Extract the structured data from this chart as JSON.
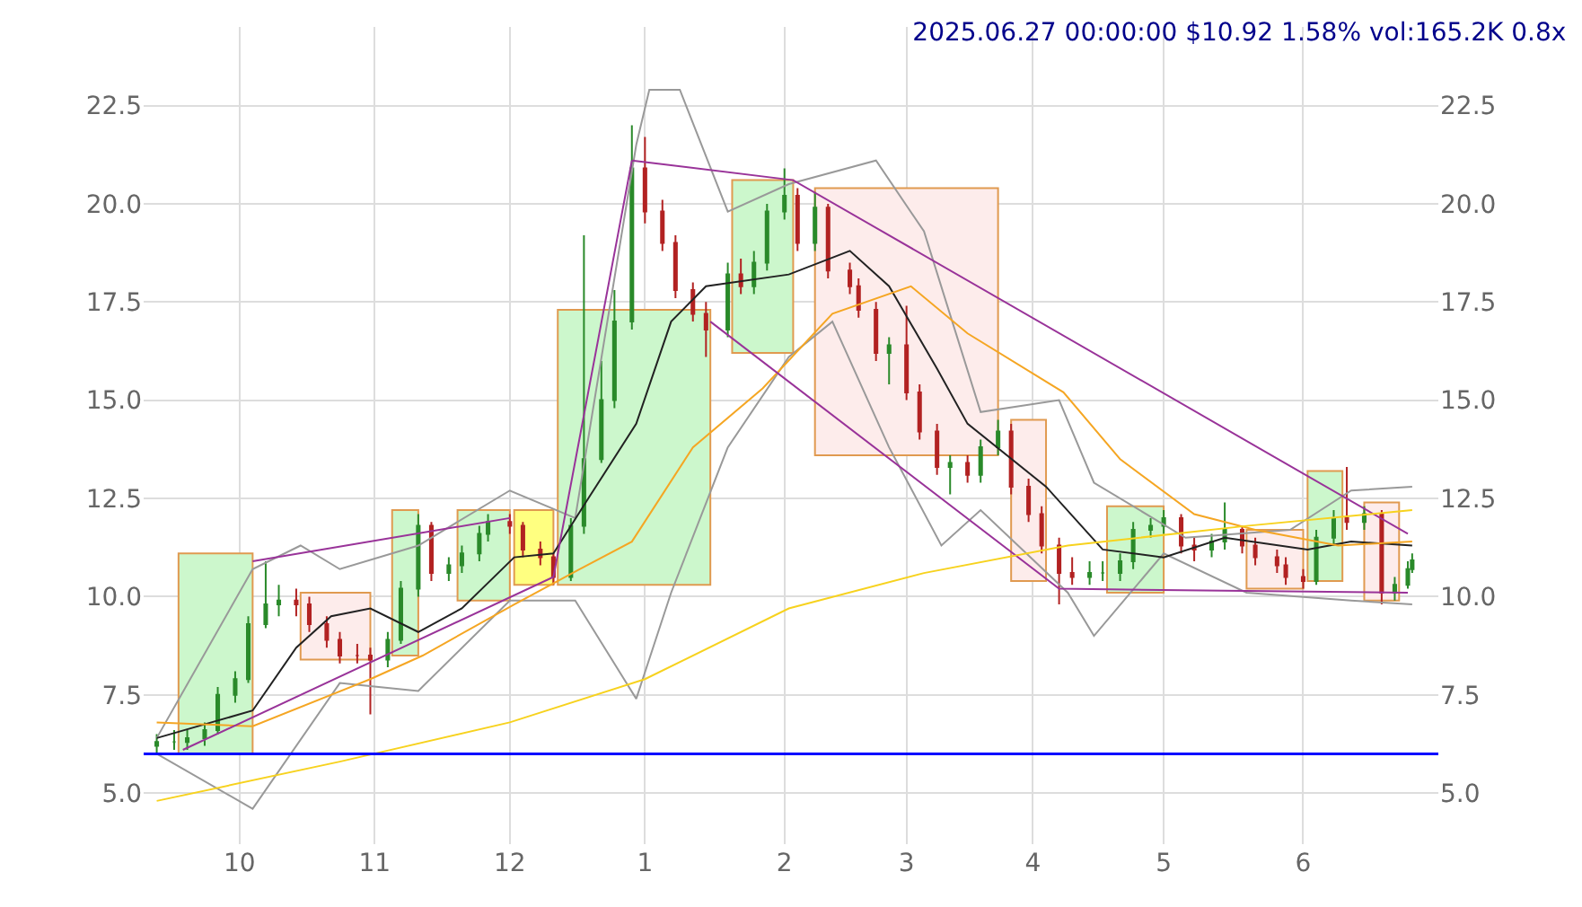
{
  "chart_data": {
    "type": "candlestick",
    "title": "2025.06.27 00:00:00 $10.92 1.58% vol:165.2K 0.8x",
    "x": [
      "2024-09-12",
      "2024-09-16",
      "2024-09-19",
      "2024-09-23",
      "2024-09-26",
      "2024-09-30",
      "2024-10-03",
      "2024-10-07",
      "2024-10-10",
      "2024-10-14",
      "2024-10-17",
      "2024-10-21",
      "2024-10-24",
      "2024-10-28",
      "2024-10-31",
      "2024-11-04",
      "2024-11-07",
      "2024-11-11",
      "2024-11-14",
      "2024-11-18",
      "2024-11-21",
      "2024-11-25",
      "2024-11-27",
      "2024-12-02",
      "2024-12-05",
      "2024-12-09",
      "2024-12-12",
      "2024-12-16",
      "2024-12-19",
      "2024-12-23",
      "2024-12-26",
      "2024-12-30",
      "2025-01-02",
      "2025-01-06",
      "2025-01-09",
      "2025-01-13",
      "2025-01-16",
      "2025-01-21",
      "2025-01-24",
      "2025-01-27",
      "2025-01-30",
      "2025-02-03",
      "2025-02-06",
      "2025-02-10",
      "2025-02-13",
      "2025-02-18",
      "2025-02-20",
      "2025-02-24",
      "2025-02-27",
      "2025-03-03",
      "2025-03-06",
      "2025-03-10",
      "2025-03-13",
      "2025-03-17",
      "2025-03-20",
      "2025-03-24",
      "2025-03-27",
      "2025-03-31",
      "2025-04-03",
      "2025-04-07",
      "2025-04-10",
      "2025-04-14",
      "2025-04-17",
      "2025-04-21",
      "2025-04-24",
      "2025-04-28",
      "2025-05-01",
      "2025-05-05",
      "2025-05-08",
      "2025-05-12",
      "2025-05-15",
      "2025-05-19",
      "2025-05-22",
      "2025-05-27",
      "2025-05-29",
      "2025-06-02",
      "2025-06-05",
      "2025-06-09",
      "2025-06-12",
      "2025-06-16",
      "2025-06-20",
      "2025-06-23",
      "2025-06-26",
      "2025-06-27"
    ],
    "ohlc": [
      [
        6.2,
        6.5,
        6.0,
        6.3
      ],
      [
        6.3,
        6.6,
        6.1,
        6.3
      ],
      [
        6.3,
        6.6,
        6.1,
        6.4
      ],
      [
        6.4,
        6.8,
        6.2,
        6.6
      ],
      [
        6.6,
        7.7,
        6.5,
        7.5
      ],
      [
        7.5,
        8.1,
        7.3,
        7.9
      ],
      [
        7.9,
        9.5,
        7.8,
        9.3
      ],
      [
        9.3,
        10.9,
        9.2,
        9.8
      ],
      [
        9.8,
        10.3,
        9.5,
        9.9
      ],
      [
        9.9,
        10.2,
        9.5,
        9.8
      ],
      [
        9.8,
        10.0,
        9.1,
        9.3
      ],
      [
        9.3,
        9.5,
        8.7,
        8.9
      ],
      [
        8.9,
        9.1,
        8.3,
        8.5
      ],
      [
        8.5,
        8.8,
        8.3,
        8.5
      ],
      [
        8.5,
        8.7,
        7.0,
        8.4
      ],
      [
        8.4,
        9.1,
        8.2,
        8.9
      ],
      [
        8.9,
        10.4,
        8.8,
        10.2
      ],
      [
        10.2,
        12.1,
        10.0,
        11.8
      ],
      [
        11.8,
        11.9,
        10.4,
        10.6
      ],
      [
        10.6,
        11.0,
        10.4,
        10.8
      ],
      [
        10.8,
        11.3,
        10.6,
        11.1
      ],
      [
        11.1,
        11.8,
        10.9,
        11.6
      ],
      [
        11.6,
        12.1,
        11.4,
        11.9
      ],
      [
        11.9,
        12.1,
        11.6,
        11.8
      ],
      [
        11.8,
        11.9,
        11.0,
        11.2
      ],
      [
        11.2,
        11.4,
        10.8,
        11.0
      ],
      [
        11.0,
        11.1,
        10.3,
        10.5
      ],
      [
        10.5,
        12.0,
        10.4,
        11.8
      ],
      [
        11.8,
        19.2,
        11.6,
        13.5
      ],
      [
        13.5,
        16.0,
        13.4,
        15.0
      ],
      [
        15.0,
        17.8,
        14.8,
        17.0
      ],
      [
        17.0,
        22.0,
        16.8,
        20.9
      ],
      [
        20.9,
        21.7,
        19.5,
        19.8
      ],
      [
        19.8,
        20.1,
        18.8,
        19.0
      ],
      [
        19.0,
        19.2,
        17.6,
        17.8
      ],
      [
        17.8,
        18.0,
        17.0,
        17.2
      ],
      [
        17.2,
        17.5,
        16.1,
        16.8
      ],
      [
        16.8,
        18.5,
        16.6,
        18.2
      ],
      [
        18.2,
        18.6,
        17.7,
        17.9
      ],
      [
        17.9,
        18.8,
        17.7,
        18.5
      ],
      [
        18.5,
        20.0,
        18.3,
        19.8
      ],
      [
        19.8,
        20.9,
        19.6,
        20.2
      ],
      [
        20.2,
        20.4,
        18.8,
        19.0
      ],
      [
        19.0,
        20.3,
        18.8,
        19.9
      ],
      [
        19.9,
        20.0,
        18.1,
        18.3
      ],
      [
        18.3,
        18.5,
        17.7,
        17.9
      ],
      [
        17.9,
        18.1,
        17.1,
        17.3
      ],
      [
        17.3,
        17.5,
        16.0,
        16.2
      ],
      [
        16.2,
        16.6,
        15.4,
        16.4
      ],
      [
        16.4,
        17.4,
        15.0,
        15.2
      ],
      [
        15.2,
        15.4,
        14.0,
        14.2
      ],
      [
        14.2,
        14.4,
        13.1,
        13.3
      ],
      [
        13.3,
        13.6,
        12.6,
        13.4
      ],
      [
        13.4,
        13.6,
        12.9,
        13.1
      ],
      [
        13.1,
        14.0,
        12.9,
        13.8
      ],
      [
        13.8,
        14.5,
        13.6,
        14.2
      ],
      [
        14.2,
        14.4,
        12.6,
        12.8
      ],
      [
        12.8,
        13.0,
        11.9,
        12.1
      ],
      [
        12.1,
        12.3,
        11.1,
        11.3
      ],
      [
        11.3,
        11.5,
        9.8,
        10.6
      ],
      [
        10.6,
        11.0,
        10.3,
        10.5
      ],
      [
        10.5,
        10.9,
        10.3,
        10.6
      ],
      [
        10.6,
        10.9,
        10.4,
        10.6
      ],
      [
        10.6,
        11.1,
        10.4,
        10.9
      ],
      [
        10.9,
        11.9,
        10.7,
        11.7
      ],
      [
        11.7,
        12.0,
        11.5,
        11.8
      ],
      [
        11.8,
        12.2,
        11.6,
        12.0
      ],
      [
        12.0,
        12.1,
        11.1,
        11.3
      ],
      [
        11.3,
        11.5,
        10.9,
        11.2
      ],
      [
        11.2,
        11.6,
        11.0,
        11.4
      ],
      [
        11.4,
        12.4,
        11.2,
        11.7
      ],
      [
        11.7,
        11.8,
        11.1,
        11.3
      ],
      [
        11.3,
        11.5,
        10.8,
        11.0
      ],
      [
        11.0,
        11.2,
        10.6,
        10.8
      ],
      [
        10.8,
        11.0,
        10.3,
        10.5
      ],
      [
        10.5,
        10.7,
        10.2,
        10.4
      ],
      [
        10.4,
        11.7,
        10.3,
        11.5
      ],
      [
        11.5,
        12.2,
        11.3,
        12.0
      ],
      [
        12.0,
        13.3,
        11.7,
        11.9
      ],
      [
        11.9,
        12.3,
        11.7,
        12.1
      ],
      [
        12.1,
        12.2,
        9.8,
        10.1
      ],
      [
        10.1,
        10.5,
        9.9,
        10.3
      ],
      [
        10.3,
        10.9,
        10.2,
        10.7
      ],
      [
        10.7,
        11.1,
        10.6,
        10.92
      ]
    ],
    "series": [
      {
        "type": "area",
        "color": "#ccf7cc",
        "x": [
          "2024-09-17",
          "2024-09-17",
          "2024-10-04",
          "2024-10-04",
          "2024-09-17"
        ],
        "values": [
          6.0,
          11.1,
          11.1,
          6.0,
          6.0
        ]
      },
      {
        "type": "area",
        "color": "#fdeceb",
        "x": [
          "2024-10-15",
          "2024-10-15",
          "2024-10-31",
          "2024-10-31",
          "2024-10-15"
        ],
        "values": [
          8.4,
          10.1,
          10.1,
          8.4,
          8.4
        ]
      },
      {
        "type": "area",
        "color": "#ccf7cc",
        "x": [
          "2024-11-05",
          "2024-11-05",
          "2024-11-11",
          "2024-11-11",
          "2024-11-05"
        ],
        "values": [
          8.5,
          12.2,
          12.2,
          8.5,
          8.5
        ]
      },
      {
        "type": "area",
        "color": "#ccf7cc",
        "x": [
          "2024-11-20",
          "2024-11-20",
          "2024-12-02",
          "2024-12-02",
          "2024-11-20"
        ],
        "values": [
          9.9,
          12.2,
          12.2,
          9.9,
          9.9
        ]
      },
      {
        "type": "area",
        "color": "#ffff80",
        "x": [
          "2024-12-03",
          "2024-12-03",
          "2024-12-12",
          "2024-12-12",
          "2024-12-03"
        ],
        "values": [
          10.3,
          12.2,
          12.2,
          10.3,
          10.3
        ]
      },
      {
        "type": "area",
        "color": "#ccf7cc",
        "x": [
          "2024-12-13",
          "2024-12-13",
          "2025-01-17",
          "2025-01-17",
          "2024-12-13"
        ],
        "values": [
          10.3,
          17.3,
          17.3,
          10.3,
          10.3
        ]
      },
      {
        "type": "area",
        "color": "#ccf7cc",
        "x": [
          "2025-01-22",
          "2025-01-22",
          "2025-02-05",
          "2025-02-05",
          "2025-01-22"
        ],
        "values": [
          16.2,
          20.6,
          20.6,
          16.2,
          16.2
        ]
      },
      {
        "type": "area",
        "color": "#fdeceb",
        "x": [
          "2025-02-10",
          "2025-02-10",
          "2025-03-24",
          "2025-03-24",
          "2025-02-10"
        ],
        "values": [
          13.6,
          20.4,
          20.4,
          13.6,
          13.6
        ]
      },
      {
        "type": "area",
        "color": "#fdeceb",
        "x": [
          "2025-03-27",
          "2025-03-27",
          "2025-04-04",
          "2025-04-04",
          "2025-03-27"
        ],
        "values": [
          10.4,
          14.5,
          14.5,
          10.4,
          10.4
        ]
      },
      {
        "type": "area",
        "color": "#ccf7cc",
        "x": [
          "2025-04-18",
          "2025-04-18",
          "2025-05-01",
          "2025-05-01",
          "2025-04-18"
        ],
        "values": [
          10.1,
          12.3,
          12.3,
          10.1,
          10.1
        ]
      },
      {
        "type": "area",
        "color": "#fdeceb",
        "x": [
          "2025-05-20",
          "2025-05-20",
          "2025-06-02",
          "2025-06-02",
          "2025-05-20"
        ],
        "values": [
          10.2,
          11.7,
          11.7,
          10.2,
          10.2
        ]
      },
      {
        "type": "area",
        "color": "#ccf7cc",
        "x": [
          "2025-06-03",
          "2025-06-03",
          "2025-06-11",
          "2025-06-11",
          "2025-06-03"
        ],
        "values": [
          10.4,
          13.2,
          13.2,
          10.4,
          10.4
        ]
      },
      {
        "type": "area",
        "color": "#fdeceb",
        "x": [
          "2025-06-16",
          "2025-06-16",
          "2025-06-24",
          "2025-06-24",
          "2025-06-16"
        ],
        "values": [
          9.9,
          12.4,
          12.4,
          9.9,
          9.9
        ]
      },
      {
        "type": "line",
        "color": "#999999",
        "x": [
          "2024-09-12",
          "2024-10-04",
          "2024-10-15",
          "2024-10-24",
          "2024-11-11",
          "2024-12-02",
          "2024-12-17",
          "2024-12-31",
          "2025-01-03",
          "2025-01-10",
          "2025-01-21",
          "2025-02-04",
          "2025-02-24",
          "2025-03-07",
          "2025-03-20",
          "2025-04-07",
          "2025-04-15",
          "2025-05-06",
          "2025-05-30",
          "2025-06-13",
          "2025-06-27"
        ],
        "values": [
          6.4,
          10.7,
          11.3,
          10.7,
          11.3,
          12.7,
          12.0,
          21.5,
          22.9,
          22.9,
          19.8,
          20.5,
          21.1,
          19.3,
          14.7,
          15.0,
          12.9,
          11.5,
          11.7,
          12.7,
          12.8
        ]
      },
      {
        "type": "line",
        "color": "#999999",
        "x": [
          "2024-09-12",
          "2024-10-04",
          "2024-10-24",
          "2024-11-11",
          "2024-12-02",
          "2024-12-17",
          "2024-12-31",
          "2025-01-08",
          "2025-01-21",
          "2025-02-04",
          "2025-02-14",
          "2025-02-27",
          "2025-03-11",
          "2025-03-20",
          "2025-04-09",
          "2025-04-15",
          "2025-05-01",
          "2025-05-20",
          "2025-06-13",
          "2025-06-27"
        ],
        "values": [
          6.0,
          4.6,
          7.8,
          7.6,
          9.9,
          9.9,
          7.4,
          10.1,
          13.8,
          16.1,
          17.0,
          13.8,
          11.3,
          12.2,
          10.1,
          9.0,
          11.1,
          10.1,
          9.9,
          9.8
        ]
      },
      {
        "type": "line",
        "color": "#222222",
        "x": [
          "2024-09-12",
          "2024-10-04",
          "2024-10-14",
          "2024-10-22",
          "2024-10-31",
          "2024-11-11",
          "2024-11-21",
          "2024-12-03",
          "2024-12-12",
          "2024-12-20",
          "2024-12-31",
          "2025-01-08",
          "2025-01-16",
          "2025-02-04",
          "2025-02-18",
          "2025-02-27",
          "2025-03-10",
          "2025-03-17",
          "2025-04-04",
          "2025-04-17",
          "2025-05-01",
          "2025-05-15",
          "2025-06-03",
          "2025-06-13",
          "2025-06-27"
        ],
        "values": [
          6.4,
          7.1,
          8.7,
          9.5,
          9.7,
          9.1,
          9.7,
          11.0,
          11.1,
          12.5,
          14.4,
          17.0,
          17.9,
          18.2,
          18.8,
          17.9,
          15.8,
          14.4,
          12.8,
          11.2,
          11.0,
          11.5,
          11.2,
          11.4,
          11.3
        ]
      },
      {
        "type": "line",
        "color": "#f5a623",
        "x": [
          "2024-09-12",
          "2024-10-04",
          "2024-10-31",
          "2024-11-12",
          "2024-12-03",
          "2024-12-18",
          "2024-12-30",
          "2025-01-13",
          "2025-01-29",
          "2025-02-14",
          "2025-03-04",
          "2025-03-17",
          "2025-04-08",
          "2025-04-21",
          "2025-05-08",
          "2025-05-22",
          "2025-06-10",
          "2025-06-27"
        ],
        "values": [
          6.8,
          6.7,
          7.9,
          8.5,
          9.8,
          10.7,
          11.4,
          13.8,
          15.3,
          17.2,
          17.9,
          16.7,
          15.2,
          13.5,
          12.1,
          11.7,
          11.3,
          11.4
        ]
      },
      {
        "type": "line",
        "axis": "y2",
        "color": "#f7d21e",
        "x": [
          "2024-09-12",
          "2024-10-24",
          "2024-12-02",
          "2025-01-02",
          "2025-02-04",
          "2025-03-07",
          "2025-04-09",
          "2025-05-20",
          "2025-06-27"
        ],
        "values": [
          4.8,
          5.8,
          6.8,
          7.9,
          9.7,
          10.6,
          11.3,
          11.8,
          12.2
        ]
      },
      {
        "type": "line",
        "color": "#993399",
        "x": [
          "2024-10-04",
          "2024-12-02"
        ],
        "values": [
          10.9,
          12.0
        ]
      },
      {
        "type": "line",
        "color": "#993399",
        "x": [
          "2024-09-18",
          "2024-12-12",
          "2024-12-30"
        ],
        "values": [
          6.1,
          10.5,
          21.1
        ]
      },
      {
        "type": "line",
        "color": "#993399",
        "x": [
          "2024-12-30",
          "2025-02-05",
          "2025-06-26"
        ],
        "values": [
          21.1,
          20.6,
          11.6
        ]
      },
      {
        "type": "line",
        "color": "#993399",
        "x": [
          "2025-01-17",
          "2025-04-07",
          "2025-06-26"
        ],
        "values": [
          17.0,
          10.2,
          10.1
        ]
      }
    ],
    "ref_lines": [
      {
        "axis": "y",
        "value": 6.0,
        "color": "#0000ff"
      }
    ],
    "xlim": [
      "2024-09-09",
      "2025-07-03"
    ],
    "xticks": [
      {
        "value": "2024-10-01",
        "label": "10"
      },
      {
        "value": "2024-11-01",
        "label": "11"
      },
      {
        "value": "2024-12-02",
        "label": "12"
      },
      {
        "value": "2025-01-02",
        "label": "1"
      },
      {
        "value": "2025-02-03",
        "label": "2"
      },
      {
        "value": "2025-03-03",
        "label": "3"
      },
      {
        "value": "2025-04-01",
        "label": "4"
      },
      {
        "value": "2025-05-01",
        "label": "5"
      },
      {
        "value": "2025-06-02",
        "label": "6"
      }
    ],
    "ylim": [
      3.7,
      24.5
    ],
    "yticks": [
      {
        "value": 5,
        "label": "5.0"
      },
      {
        "value": 7.5,
        "label": "7.5"
      },
      {
        "value": 10,
        "label": "10.0"
      },
      {
        "value": 12.5,
        "label": "12.5"
      },
      {
        "value": 15,
        "label": "15.0"
      },
      {
        "value": 17.5,
        "label": "17.5"
      },
      {
        "value": 20,
        "label": "20.0"
      },
      {
        "value": 22.5,
        "label": "22.5"
      }
    ],
    "y2lim": [
      3.7,
      24.5
    ],
    "y2ticks": [
      {
        "value": 5,
        "label": "5.0"
      },
      {
        "value": 7.5,
        "label": "7.5"
      },
      {
        "value": 10,
        "label": "10.0"
      },
      {
        "value": 12.5,
        "label": "12.5"
      },
      {
        "value": 15,
        "label": "15.0"
      },
      {
        "value": 17.5,
        "label": "17.5"
      },
      {
        "value": 20,
        "label": "20.0"
      },
      {
        "value": 22.5,
        "label": "22.5"
      }
    ],
    "grid": true
  }
}
